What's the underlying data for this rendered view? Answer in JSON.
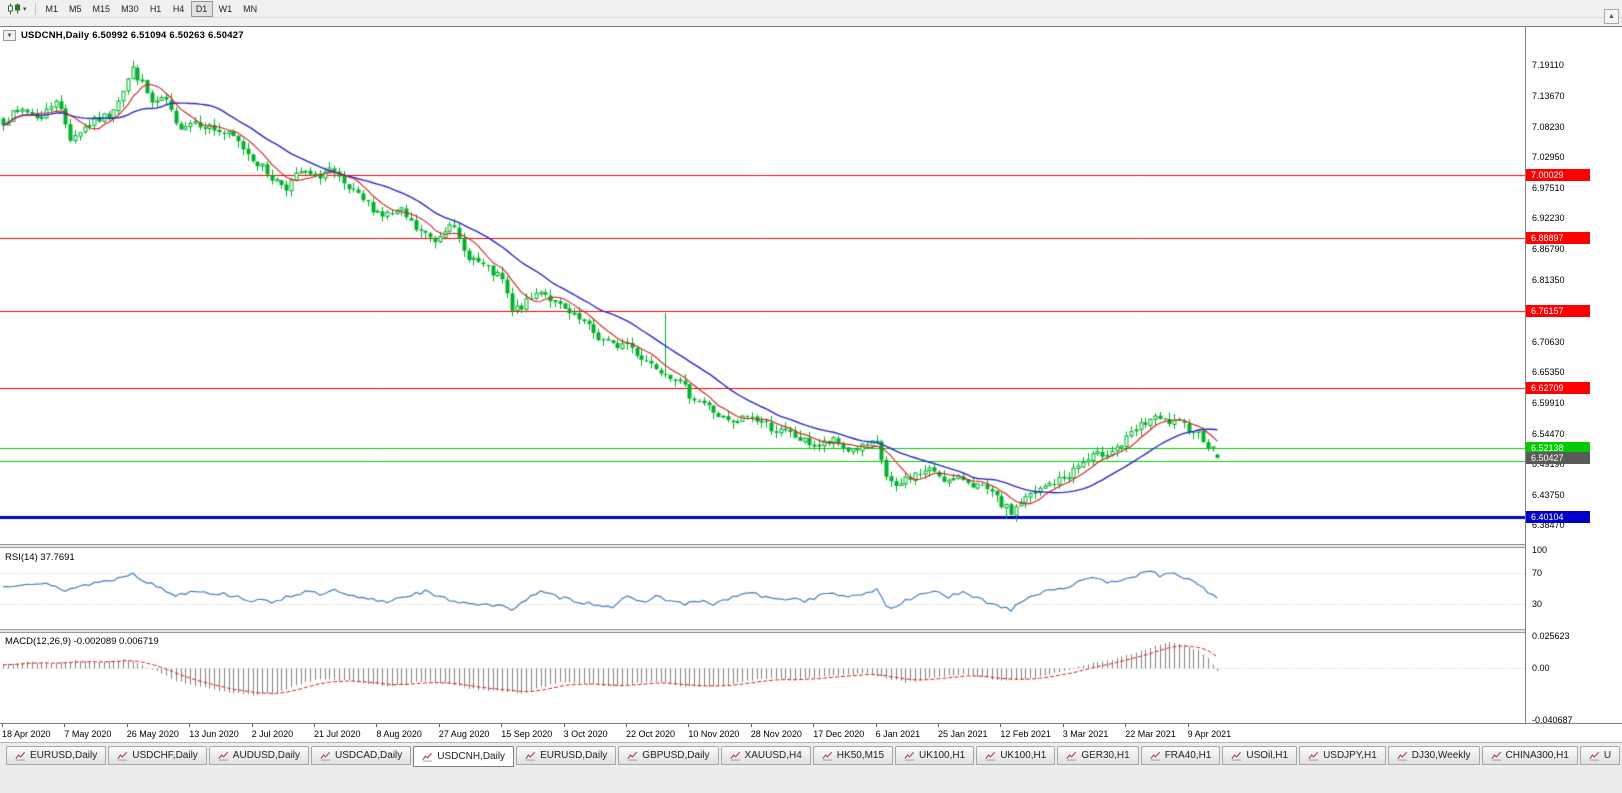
{
  "toolbar": {
    "timeframes": [
      {
        "label": "M1",
        "active": false
      },
      {
        "label": "M5",
        "active": false
      },
      {
        "label": "M15",
        "active": false
      },
      {
        "label": "M30",
        "active": false
      },
      {
        "label": "H1",
        "active": false
      },
      {
        "label": "H4",
        "active": false
      },
      {
        "label": "D1",
        "active": true
      },
      {
        "label": "W1",
        "active": false
      },
      {
        "label": "MN",
        "active": false
      }
    ],
    "dropdown_glyph": "▾",
    "scroll_up_glyph": "▲"
  },
  "chart": {
    "collapse_glyph": "▼",
    "title": "USDCNH,Daily 6.50992 6.51094 6.50263 6.50427"
  },
  "chart_data": {
    "type": "candlestick",
    "symbol": "USDCNH",
    "timeframe": "Daily",
    "ohlc": {
      "open": 6.50992,
      "high": 6.51094,
      "low": 6.50263,
      "close": 6.50427
    },
    "bars": 254,
    "colors": {
      "candle": "#00b22d",
      "ma_slow": "#2828c8",
      "ma_fast": "#d42020",
      "rsi_line": "#4a7ebb",
      "macd_hist": "#808080",
      "macd_signal": "#d42020",
      "level_red": "#ff0000",
      "level_green": "#00cc00",
      "level_blue": "#0000c8",
      "current_chip": "#5a5a5a"
    },
    "price_axis_ticks": [
      "7.19110",
      "7.13670",
      "7.08230",
      "7.02950",
      "6.97510",
      "6.92230",
      "6.86790",
      "6.81350",
      "6.70630",
      "6.65350",
      "6.59910",
      "6.54470",
      "6.49190",
      "6.43750",
      "6.38470"
    ],
    "horizontal_lines": [
      {
        "value": 7.00029,
        "label": "7.00029",
        "color": "red",
        "width": 1
      },
      {
        "value": 6.88897,
        "label": "6.88897",
        "color": "red",
        "width": 1
      },
      {
        "value": 6.76157,
        "label": "6.76157",
        "color": "red",
        "width": 1
      },
      {
        "value": 6.62709,
        "label": "6.62709",
        "color": "red",
        "width": 1
      },
      {
        "value": 6.52138,
        "label": "6.52138",
        "color": "green",
        "width": 1
      },
      {
        "value": 6.498,
        "label": "",
        "color": "green",
        "width": 1
      },
      {
        "value": 6.40104,
        "label": "6.40104",
        "color": "blue",
        "width": 3
      }
    ],
    "current_price": 6.50427,
    "current_price_label": "6.50427",
    "time_axis_ticks": [
      "18 Apr 2020",
      "7 May 2020",
      "26 May 2020",
      "13 Jun 2020",
      "2 Jul 2020",
      "21 Jul 2020",
      "8 Aug 2020",
      "27 Aug 2020",
      "15 Sep 2020",
      "3 Oct 2020",
      "22 Oct 2020",
      "10 Nov 2020",
      "28 Nov 2020",
      "17 Dec 2020",
      "6 Jan 2021",
      "25 Jan 2021",
      "12 Feb 2021",
      "3 Mar 2021",
      "22 Mar 2021",
      "9 Apr 2021"
    ],
    "close_anchors": [
      [
        0,
        7.095
      ],
      [
        4,
        7.115
      ],
      [
        8,
        7.1
      ],
      [
        11,
        7.135
      ],
      [
        14,
        7.065
      ],
      [
        18,
        7.09
      ],
      [
        22,
        7.105
      ],
      [
        25,
        7.15
      ],
      [
        27,
        7.185
      ],
      [
        29,
        7.16
      ],
      [
        31,
        7.125
      ],
      [
        34,
        7.13
      ],
      [
        36,
        7.085
      ],
      [
        40,
        7.095
      ],
      [
        44,
        7.08
      ],
      [
        48,
        7.065
      ],
      [
        52,
        7.03
      ],
      [
        56,
        6.995
      ],
      [
        59,
        6.98
      ],
      [
        62,
        7.005
      ],
      [
        65,
        6.995
      ],
      [
        68,
        7.01
      ],
      [
        71,
        6.98
      ],
      [
        75,
        6.955
      ],
      [
        79,
        6.93
      ],
      [
        83,
        6.935
      ],
      [
        86,
        6.905
      ],
      [
        90,
        6.885
      ],
      [
        93,
        6.92
      ],
      [
        96,
        6.865
      ],
      [
        100,
        6.84
      ],
      [
        104,
        6.815
      ],
      [
        106,
        6.76
      ],
      [
        109,
        6.775
      ],
      [
        112,
        6.8
      ],
      [
        115,
        6.775
      ],
      [
        118,
        6.755
      ],
      [
        121,
        6.74
      ],
      [
        124,
        6.715
      ],
      [
        127,
        6.7
      ],
      [
        130,
        6.705
      ],
      [
        133,
        6.68
      ],
      [
        136,
        6.665
      ],
      [
        140,
        6.645
      ],
      [
        143,
        6.615
      ],
      [
        146,
        6.6
      ],
      [
        149,
        6.578
      ],
      [
        152,
        6.562
      ],
      [
        155,
        6.578
      ],
      [
        158,
        6.568
      ],
      [
        161,
        6.552
      ],
      [
        164,
        6.545
      ],
      [
        167,
        6.532
      ],
      [
        170,
        6.527
      ],
      [
        173,
        6.532
      ],
      [
        176,
        6.518
      ],
      [
        179,
        6.522
      ],
      [
        182,
        6.528
      ],
      [
        184,
        6.472
      ],
      [
        186,
        6.448
      ],
      [
        188,
        6.468
      ],
      [
        191,
        6.478
      ],
      [
        194,
        6.482
      ],
      [
        197,
        6.462
      ],
      [
        200,
        6.468
      ],
      [
        203,
        6.455
      ],
      [
        206,
        6.44
      ],
      [
        208,
        6.422
      ],
      [
        210,
        6.408
      ],
      [
        212,
        6.428
      ],
      [
        215,
        6.442
      ],
      [
        218,
        6.458
      ],
      [
        221,
        6.468
      ],
      [
        224,
        6.49
      ],
      [
        227,
        6.505
      ],
      [
        230,
        6.515
      ],
      [
        233,
        6.527
      ],
      [
        236,
        6.553
      ],
      [
        239,
        6.572
      ],
      [
        242,
        6.568
      ],
      [
        245,
        6.562
      ],
      [
        247,
        6.558
      ],
      [
        249,
        6.548
      ],
      [
        251,
        6.528
      ],
      [
        253,
        6.506
      ]
    ],
    "wick_spikes": [
      {
        "index": 138,
        "high": 6.758
      },
      {
        "index": 209,
        "low": 6.398
      }
    ],
    "rsi": {
      "label": "RSI(14) 37.7691",
      "current": 37.7691,
      "axis_ticks": [
        "100",
        "70",
        "30"
      ],
      "axis_values": [
        100,
        70,
        30
      ],
      "levels": [
        70,
        30
      ],
      "anchors": [
        [
          0,
          52
        ],
        [
          5,
          58
        ],
        [
          9,
          55
        ],
        [
          13,
          48
        ],
        [
          18,
          56
        ],
        [
          24,
          63
        ],
        [
          27,
          71
        ],
        [
          30,
          58
        ],
        [
          33,
          50
        ],
        [
          36,
          41
        ],
        [
          40,
          48
        ],
        [
          44,
          44
        ],
        [
          48,
          41
        ],
        [
          52,
          34
        ],
        [
          56,
          33
        ],
        [
          60,
          41
        ],
        [
          63,
          46
        ],
        [
          66,
          42
        ],
        [
          69,
          47
        ],
        [
          72,
          40
        ],
        [
          76,
          36
        ],
        [
          80,
          33
        ],
        [
          84,
          41
        ],
        [
          88,
          46
        ],
        [
          91,
          38
        ],
        [
          95,
          33
        ],
        [
          99,
          30
        ],
        [
          103,
          27
        ],
        [
          106,
          24
        ],
        [
          109,
          36
        ],
        [
          112,
          45
        ],
        [
          115,
          40
        ],
        [
          118,
          36
        ],
        [
          121,
          32
        ],
        [
          124,
          29
        ],
        [
          127,
          27
        ],
        [
          130,
          38
        ],
        [
          133,
          32
        ],
        [
          136,
          40
        ],
        [
          139,
          34
        ],
        [
          142,
          30
        ],
        [
          145,
          33
        ],
        [
          148,
          30
        ],
        [
          151,
          36
        ],
        [
          155,
          45
        ],
        [
          158,
          40
        ],
        [
          161,
          35
        ],
        [
          164,
          38
        ],
        [
          167,
          34
        ],
        [
          170,
          40
        ],
        [
          173,
          45
        ],
        [
          176,
          37
        ],
        [
          179,
          43
        ],
        [
          182,
          49
        ],
        [
          184,
          29
        ],
        [
          186,
          24
        ],
        [
          188,
          34
        ],
        [
          191,
          42
        ],
        [
          194,
          48
        ],
        [
          197,
          39
        ],
        [
          200,
          44
        ],
        [
          203,
          37
        ],
        [
          206,
          31
        ],
        [
          208,
          26
        ],
        [
          210,
          23
        ],
        [
          212,
          34
        ],
        [
          215,
          42
        ],
        [
          218,
          49
        ],
        [
          221,
          51
        ],
        [
          224,
          58
        ],
        [
          227,
          62
        ],
        [
          230,
          59
        ],
        [
          233,
          62
        ],
        [
          236,
          67
        ],
        [
          239,
          71
        ],
        [
          241,
          67
        ],
        [
          243,
          72
        ],
        [
          245,
          64
        ],
        [
          247,
          61
        ],
        [
          249,
          57
        ],
        [
          251,
          45
        ],
        [
          253,
          37.8
        ]
      ]
    },
    "macd": {
      "label": "MACD(12,26,9) -0.002089 0.006719",
      "main": -0.002089,
      "signal": 0.006719,
      "axis_ticks": [
        "0.025623",
        "0.00",
        "-0.040687"
      ],
      "axis_values": [
        0.025623,
        0,
        -0.040687
      ],
      "anchors": [
        [
          0,
          0.003
        ],
        [
          5,
          0.005
        ],
        [
          10,
          0.004
        ],
        [
          15,
          0.006
        ],
        [
          20,
          0.005
        ],
        [
          25,
          0.007
        ],
        [
          28,
          0.004
        ],
        [
          32,
          -0.002
        ],
        [
          36,
          -0.01
        ],
        [
          40,
          -0.014
        ],
        [
          44,
          -0.017
        ],
        [
          48,
          -0.019
        ],
        [
          52,
          -0.021
        ],
        [
          56,
          -0.02
        ],
        [
          60,
          -0.015
        ],
        [
          64,
          -0.01
        ],
        [
          68,
          -0.008
        ],
        [
          72,
          -0.01
        ],
        [
          76,
          -0.012
        ],
        [
          80,
          -0.014
        ],
        [
          84,
          -0.012
        ],
        [
          88,
          -0.01
        ],
        [
          92,
          -0.012
        ],
        [
          96,
          -0.015
        ],
        [
          100,
          -0.017
        ],
        [
          104,
          -0.018
        ],
        [
          108,
          -0.02
        ],
        [
          112,
          -0.015
        ],
        [
          116,
          -0.011
        ],
        [
          120,
          -0.012
        ],
        [
          124,
          -0.013
        ],
        [
          128,
          -0.014
        ],
        [
          132,
          -0.012
        ],
        [
          136,
          -0.01
        ],
        [
          140,
          -0.013
        ],
        [
          144,
          -0.015
        ],
        [
          148,
          -0.014
        ],
        [
          152,
          -0.012
        ],
        [
          156,
          -0.009
        ],
        [
          160,
          -0.008
        ],
        [
          164,
          -0.009
        ],
        [
          168,
          -0.008
        ],
        [
          172,
          -0.006
        ],
        [
          176,
          -0.005
        ],
        [
          180,
          -0.004
        ],
        [
          184,
          -0.008
        ],
        [
          188,
          -0.011
        ],
        [
          192,
          -0.009
        ],
        [
          196,
          -0.006
        ],
        [
          200,
          -0.005
        ],
        [
          204,
          -0.007
        ],
        [
          208,
          -0.01
        ],
        [
          212,
          -0.009
        ],
        [
          216,
          -0.006
        ],
        [
          220,
          -0.003
        ],
        [
          224,
          0.001
        ],
        [
          228,
          0.005
        ],
        [
          232,
          0.008
        ],
        [
          236,
          0.013
        ],
        [
          240,
          0.018
        ],
        [
          243,
          0.021
        ],
        [
          246,
          0.019
        ],
        [
          249,
          0.014
        ],
        [
          251,
          0.008
        ],
        [
          253,
          -0.002
        ]
      ]
    }
  },
  "tabs": [
    {
      "label": "EURUSD,Daily",
      "active": false
    },
    {
      "label": "USDCHF,Daily",
      "active": false
    },
    {
      "label": "AUDUSD,Daily",
      "active": false
    },
    {
      "label": "USDCAD,Daily",
      "active": false
    },
    {
      "label": "USDCNH,Daily",
      "active": true
    },
    {
      "label": "EURUSD,Daily",
      "active": false
    },
    {
      "label": "GBPUSD,Daily",
      "active": false
    },
    {
      "label": "XAUUSD,H4",
      "active": false
    },
    {
      "label": "HK50,M15",
      "active": false
    },
    {
      "label": "UK100,H1",
      "active": false
    },
    {
      "label": "UK100,H1",
      "active": false
    },
    {
      "label": "GER30,H1",
      "active": false
    },
    {
      "label": "FRA40,H1",
      "active": false
    },
    {
      "label": "USOil,H1",
      "active": false
    },
    {
      "label": "USDJPY,H1",
      "active": false
    },
    {
      "label": "DJ30,Weekly",
      "active": false
    },
    {
      "label": "CHINA300,H1",
      "active": false
    },
    {
      "label": "U",
      "active": false,
      "truncated": true
    }
  ]
}
